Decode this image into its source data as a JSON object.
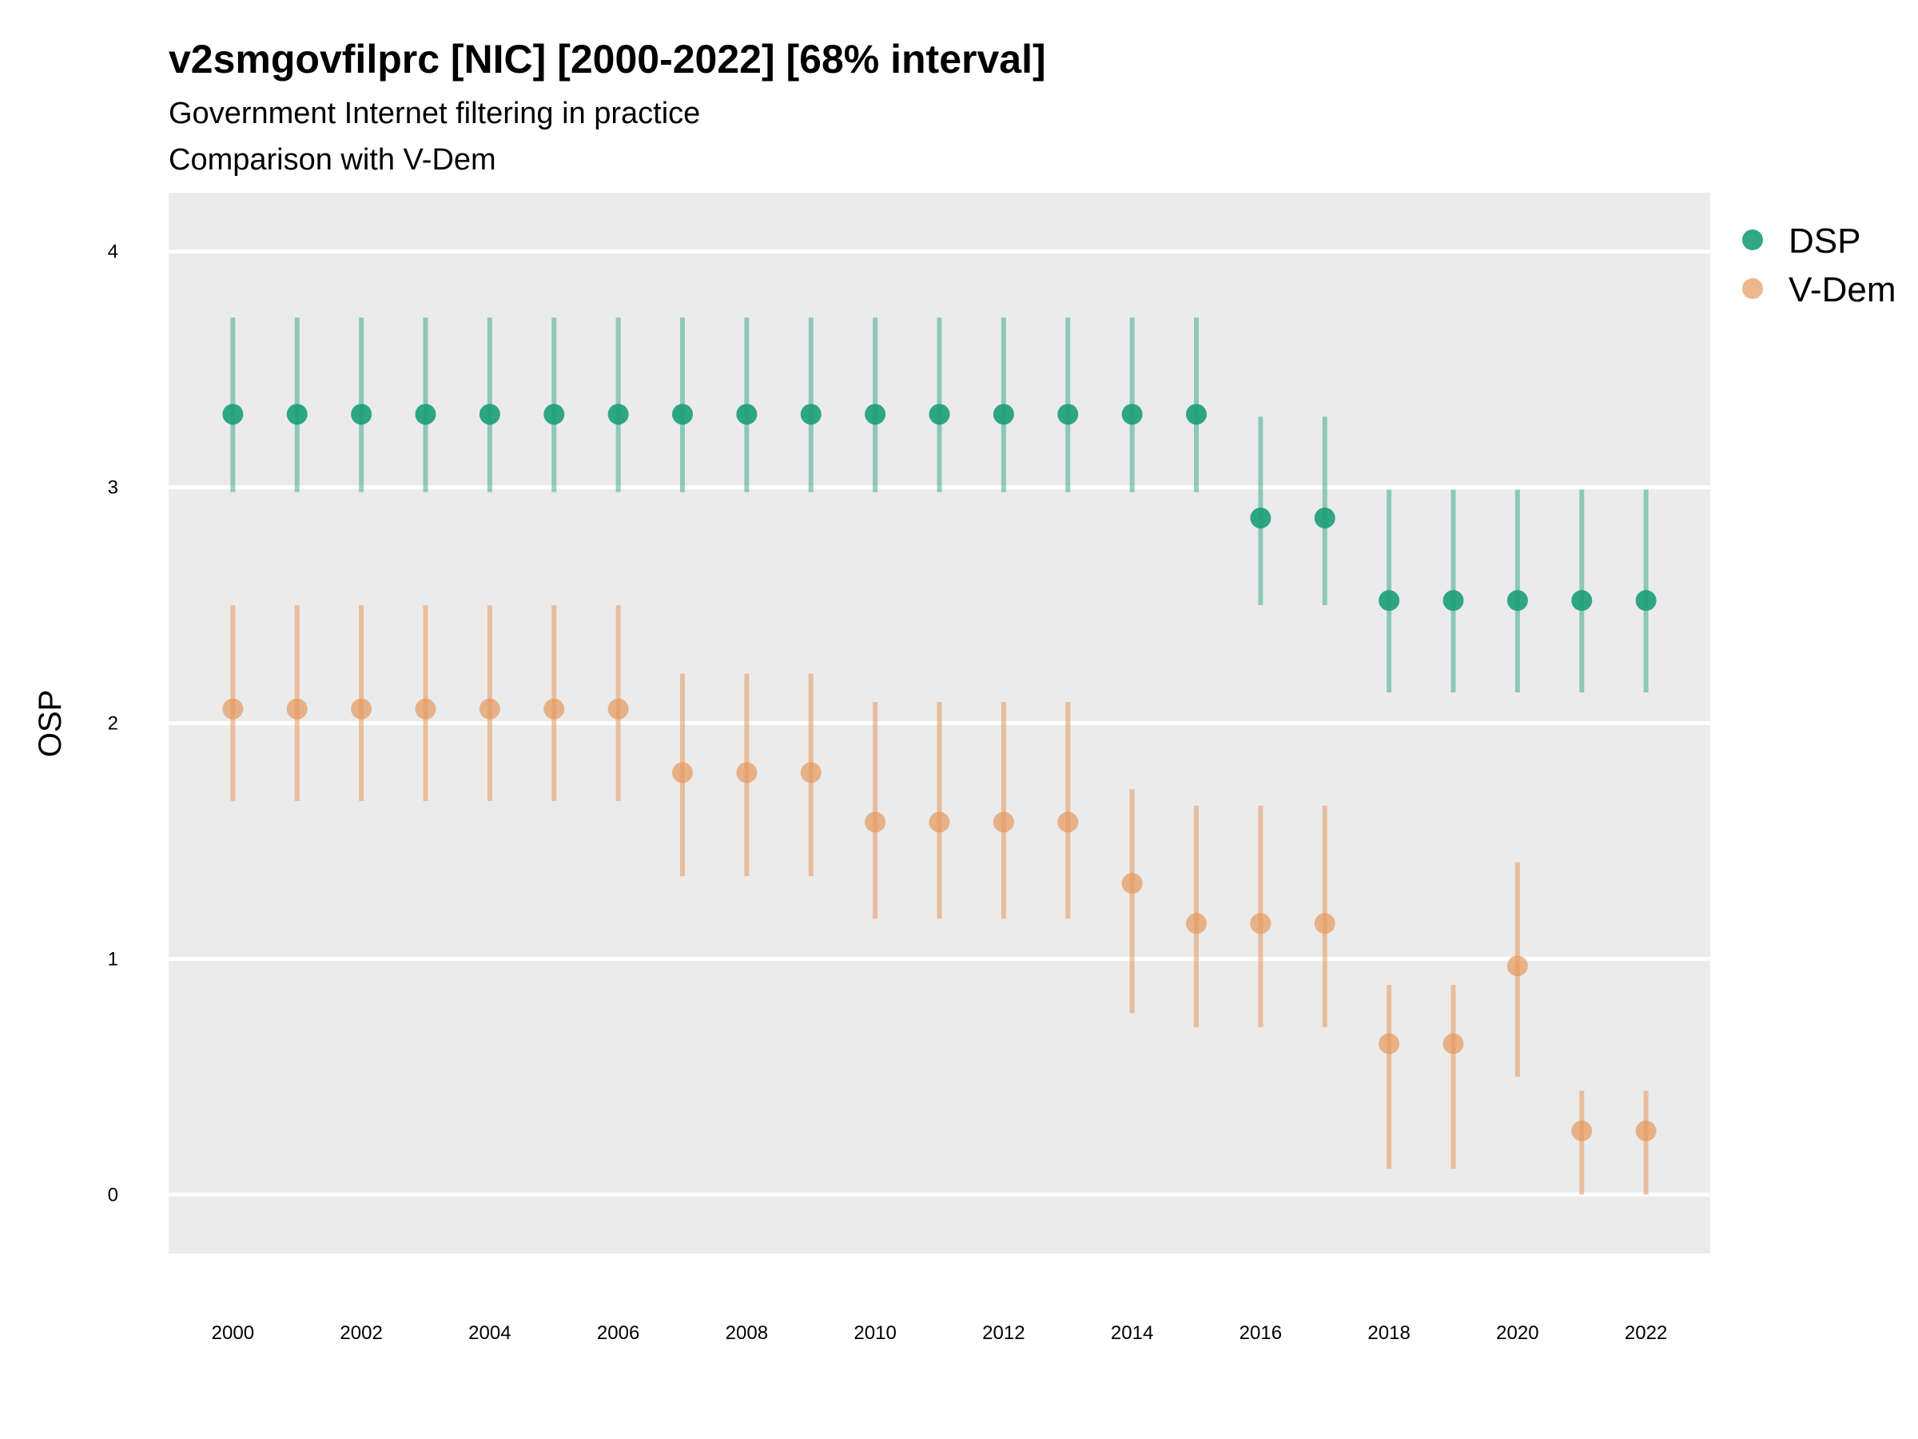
{
  "chart_data": {
    "type": "scatter",
    "title": "v2smgovfilprc [NIC] [2000-2022] [68% interval]",
    "subtitle": [
      "Government Internet filtering in practice",
      "Comparison with V-Dem"
    ],
    "xlabel": "",
    "ylabel": "OSP",
    "xlim": [
      1999,
      2023
    ],
    "ylim": [
      -0.25,
      4.25
    ],
    "x_ticks": [
      2000,
      2002,
      2004,
      2006,
      2008,
      2010,
      2012,
      2014,
      2016,
      2018,
      2020,
      2022
    ],
    "y_ticks": [
      0,
      1,
      2,
      3,
      4
    ],
    "grid": true,
    "legend_position": "right",
    "x": [
      2000,
      2001,
      2002,
      2003,
      2004,
      2005,
      2006,
      2007,
      2008,
      2009,
      2010,
      2011,
      2012,
      2013,
      2014,
      2015,
      2016,
      2017,
      2018,
      2019,
      2020,
      2021,
      2022
    ],
    "series": [
      {
        "name": "DSP",
        "color": "#1b9e77",
        "values": [
          3.31,
          3.31,
          3.31,
          3.31,
          3.31,
          3.31,
          3.31,
          3.31,
          3.31,
          3.31,
          3.31,
          3.31,
          3.31,
          3.31,
          3.31,
          3.31,
          2.87,
          2.87,
          2.52,
          2.52,
          2.52,
          2.52,
          2.52
        ],
        "lower": [
          2.98,
          2.98,
          2.98,
          2.98,
          2.98,
          2.98,
          2.98,
          2.98,
          2.98,
          2.98,
          2.98,
          2.98,
          2.98,
          2.98,
          2.98,
          2.98,
          2.5,
          2.5,
          2.13,
          2.13,
          2.13,
          2.13,
          2.13
        ],
        "upper": [
          3.72,
          3.72,
          3.72,
          3.72,
          3.72,
          3.72,
          3.72,
          3.72,
          3.72,
          3.72,
          3.72,
          3.72,
          3.72,
          3.72,
          3.72,
          3.72,
          3.3,
          3.3,
          2.99,
          2.99,
          2.99,
          2.99,
          2.99
        ]
      },
      {
        "name": "V-Dem",
        "color": "#e6985c",
        "values": [
          2.06,
          2.06,
          2.06,
          2.06,
          2.06,
          2.06,
          2.06,
          1.79,
          1.79,
          1.79,
          1.58,
          1.58,
          1.58,
          1.58,
          1.32,
          1.15,
          1.15,
          1.15,
          0.64,
          0.64,
          0.97,
          0.27,
          0.27
        ],
        "lower": [
          1.67,
          1.67,
          1.67,
          1.67,
          1.67,
          1.67,
          1.67,
          1.35,
          1.35,
          1.35,
          1.17,
          1.17,
          1.17,
          1.17,
          0.77,
          0.71,
          0.71,
          0.71,
          0.11,
          0.11,
          0.5,
          0.0,
          0.0
        ],
        "upper": [
          2.5,
          2.5,
          2.5,
          2.5,
          2.5,
          2.5,
          2.5,
          2.21,
          2.21,
          2.21,
          2.09,
          2.09,
          2.09,
          2.09,
          1.72,
          1.65,
          1.65,
          1.65,
          0.89,
          0.89,
          1.41,
          0.44,
          0.44
        ]
      }
    ]
  }
}
